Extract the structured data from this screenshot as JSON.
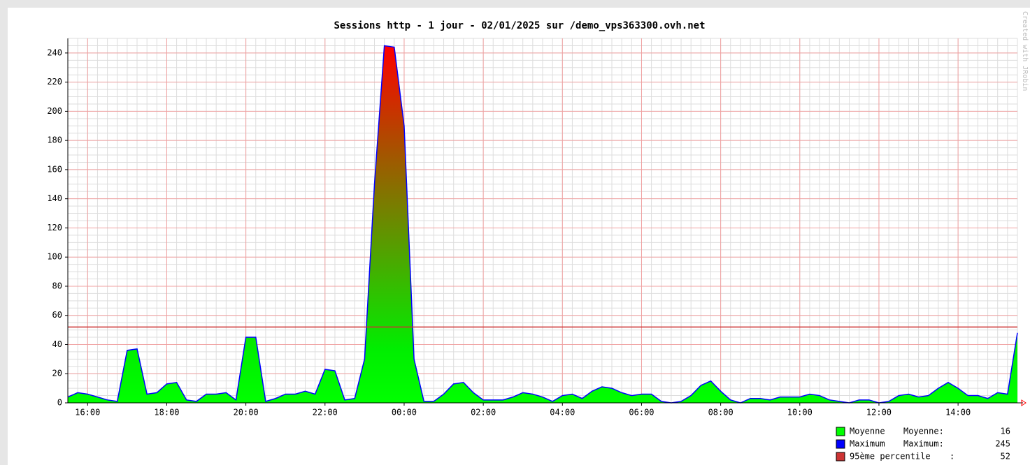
{
  "chart_data": {
    "type": "area",
    "title": "Sessions http - 1 jour - 02/01/2025 sur /demo_vps363300.ovh.net",
    "watermark": "Created with JRobin",
    "x": [
      "15:30",
      "15:45",
      "16:00",
      "16:15",
      "16:30",
      "16:45",
      "17:00",
      "17:15",
      "17:30",
      "17:45",
      "18:00",
      "18:15",
      "18:30",
      "18:45",
      "19:00",
      "19:15",
      "19:30",
      "19:45",
      "20:00",
      "20:15",
      "20:30",
      "20:45",
      "21:00",
      "21:15",
      "21:30",
      "21:45",
      "22:00",
      "22:15",
      "22:30",
      "22:45",
      "23:00",
      "23:15",
      "23:30",
      "23:45",
      "00:00",
      "00:15",
      "00:30",
      "00:45",
      "01:00",
      "01:15",
      "01:30",
      "01:45",
      "02:00",
      "02:15",
      "02:30",
      "02:45",
      "03:00",
      "03:15",
      "03:30",
      "03:45",
      "04:00",
      "04:15",
      "04:30",
      "04:45",
      "05:00",
      "05:15",
      "05:30",
      "05:45",
      "06:00",
      "06:15",
      "06:30",
      "06:45",
      "07:00",
      "07:15",
      "07:30",
      "07:45",
      "08:00",
      "08:15",
      "08:30",
      "08:45",
      "09:00",
      "09:15",
      "09:30",
      "09:45",
      "10:00",
      "10:15",
      "10:30",
      "10:45",
      "11:00",
      "11:15",
      "11:30",
      "11:45",
      "12:00",
      "12:15",
      "12:30",
      "12:45",
      "13:00",
      "13:15",
      "13:30",
      "13:45",
      "14:00",
      "14:15",
      "14:30",
      "14:45",
      "15:00",
      "15:15",
      "15:30"
    ],
    "xticks": [
      "16:00",
      "18:00",
      "20:00",
      "22:00",
      "00:00",
      "02:00",
      "04:00",
      "06:00",
      "08:00",
      "10:00",
      "12:00",
      "14:00"
    ],
    "series": [
      {
        "name": "Moyenne",
        "color": "#00ff00",
        "legend_label": "Moyenne:",
        "legend_value": 16,
        "values": [
          4,
          7,
          6,
          4,
          2,
          1,
          36,
          37,
          6,
          7,
          13,
          14,
          2,
          1,
          6,
          6,
          7,
          2,
          45,
          45,
          1,
          3,
          6,
          6,
          8,
          6,
          23,
          22,
          2,
          3,
          30,
          150,
          245,
          244,
          190,
          30,
          1,
          1,
          6,
          13,
          14,
          7,
          2,
          2,
          2,
          4,
          7,
          6,
          4,
          1,
          5,
          6,
          3,
          8,
          11,
          10,
          7,
          5,
          6,
          6,
          1,
          0,
          1,
          5,
          12,
          15,
          8,
          2,
          0,
          3,
          3,
          2,
          4,
          4,
          4,
          6,
          5,
          2,
          1,
          0,
          2,
          2,
          0,
          1,
          5,
          6,
          4,
          5,
          10,
          14,
          10,
          5,
          5,
          3,
          7,
          6,
          48
        ]
      },
      {
        "name": "Maximum",
        "color": "#0000ff",
        "legend_label": "Maximum:",
        "legend_value": 245,
        "values": [
          4,
          7,
          6,
          4,
          2,
          1,
          36,
          37,
          6,
          7,
          13,
          14,
          2,
          1,
          6,
          6,
          7,
          2,
          45,
          45,
          1,
          3,
          6,
          6,
          8,
          6,
          23,
          22,
          2,
          3,
          30,
          150,
          245,
          244,
          190,
          30,
          1,
          1,
          6,
          13,
          14,
          7,
          2,
          2,
          2,
          4,
          7,
          6,
          4,
          1,
          5,
          6,
          3,
          8,
          11,
          10,
          7,
          5,
          6,
          6,
          1,
          0,
          1,
          5,
          12,
          15,
          8,
          2,
          0,
          3,
          3,
          2,
          4,
          4,
          4,
          6,
          5,
          2,
          1,
          0,
          2,
          2,
          0,
          1,
          5,
          6,
          4,
          5,
          10,
          14,
          10,
          5,
          5,
          3,
          7,
          6,
          48
        ]
      }
    ],
    "percentile": {
      "name": "95ème percentile",
      "legend_label": ":",
      "value": 52,
      "color": "#cc3333"
    },
    "ylim": [
      0,
      250
    ],
    "yticks": [
      0,
      20,
      40,
      60,
      80,
      100,
      120,
      140,
      160,
      180,
      200,
      220,
      240
    ],
    "grid": true
  }
}
